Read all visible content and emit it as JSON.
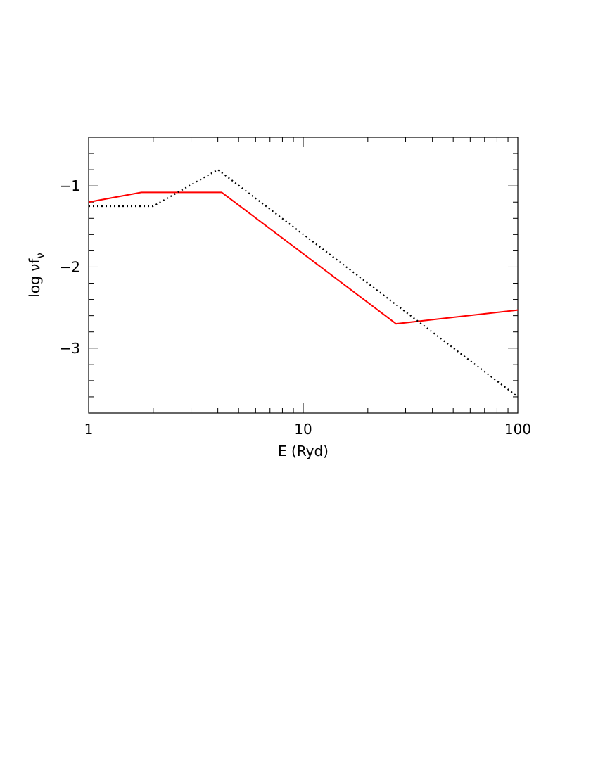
{
  "chart_data": {
    "type": "line",
    "xlabel": "E (Ryd)",
    "ylabel": [
      "log νf",
      "ν"
    ],
    "xscale": "log",
    "xlim": [
      1,
      100
    ],
    "xticks": [
      1,
      10,
      100
    ],
    "xminorticks": [
      2,
      3,
      4,
      5,
      6,
      7,
      8,
      9,
      20,
      30,
      40,
      50,
      60,
      70,
      80,
      90
    ],
    "ylim": [
      -3.8,
      -0.4
    ],
    "yticks": [
      {
        "value": -3,
        "label": "−3"
      },
      {
        "value": -2,
        "label": "−2"
      },
      {
        "value": -1,
        "label": "−1"
      }
    ],
    "yminorticks": [
      -3.8,
      -3.6,
      -3.4,
      -3.2,
      -2.8,
      -2.6,
      -2.4,
      -2.2,
      -1.8,
      -1.6,
      -1.4,
      -1.2,
      -0.8,
      -0.6,
      -0.4
    ],
    "series": [
      {
        "color": "#ff0000",
        "dash": "solid",
        "x": [
          1,
          1.76,
          4.17,
          27.1,
          100
        ],
        "values": [
          -1.2,
          -1.08,
          -1.08,
          -2.7,
          -2.53
        ]
      },
      {
        "color": "#000000",
        "dash": "dotted",
        "x": [
          1,
          2,
          4,
          100
        ],
        "values": [
          -1.25,
          -1.25,
          -0.8,
          -3.6
        ]
      }
    ]
  }
}
